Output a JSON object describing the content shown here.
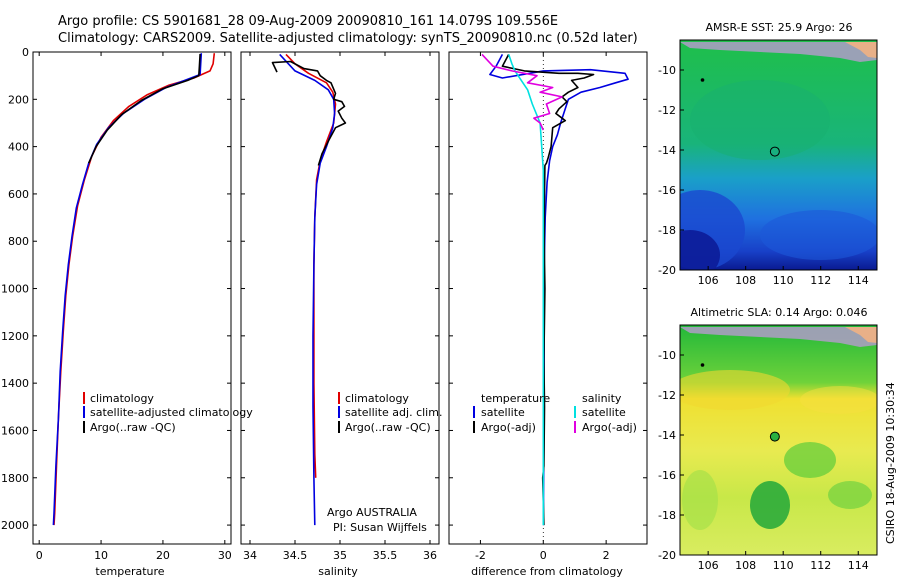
{
  "header": {
    "line1": "Argo profile: CS 5901681_28 09-Aug-2009 20090810_161 14.079S 109.556E",
    "line2": "Climatology: CARS2009. Satellite-adjusted climatology: synTS_20090810.nc (0.52d later)"
  },
  "side_label": "CSIRO 18-Aug-2009 10:30:34",
  "colors": {
    "climatology": "#e00000",
    "satellite": "#0000e0",
    "argo": "#000000",
    "sal_satellite": "#00e0e0",
    "sal_argo": "#e000e0"
  },
  "chart_data": [
    {
      "type": "line",
      "xlabel": "temperature",
      "ylabel": "",
      "xlim": [
        -1,
        31
      ],
      "ylim": [
        2080,
        0
      ],
      "xticks": [
        "0",
        "10",
        "20",
        "30"
      ],
      "yticks": [
        "0",
        "200",
        "400",
        "600",
        "800",
        "1000",
        "1200",
        "1400",
        "1600",
        "1800",
        "2000"
      ],
      "legend": [
        "climatology",
        "satellite-adjusted climatology",
        "Argo(..raw -QC)"
      ],
      "series": [
        {
          "name": "climatology",
          "color": "climatology",
          "points": [
            [
              28.3,
              5
            ],
            [
              28.1,
              50
            ],
            [
              27.6,
              80
            ],
            [
              25,
              110
            ],
            [
              21,
              140
            ],
            [
              17.5,
              180
            ],
            [
              14.5,
              230
            ],
            [
              12,
              290
            ],
            [
              10,
              360
            ],
            [
              8.5,
              440
            ],
            [
              7.3,
              540
            ],
            [
              6.2,
              650
            ],
            [
              5.4,
              780
            ],
            [
              4.8,
              900
            ],
            [
              4.3,
              1030
            ],
            [
              3.9,
              1180
            ],
            [
              3.5,
              1350
            ],
            [
              3.1,
              1550
            ],
            [
              2.8,
              1750
            ],
            [
              2.5,
              1950
            ],
            [
              2.4,
              2000
            ]
          ]
        },
        {
          "name": "satellite-adjusted climatology",
          "color": "satellite",
          "points": [
            [
              26.2,
              5
            ],
            [
              26.1,
              50
            ],
            [
              26.0,
              95
            ],
            [
              24,
              115
            ],
            [
              20.5,
              150
            ],
            [
              17,
              200
            ],
            [
              13.6,
              260
            ],
            [
              11.2,
              320
            ],
            [
              9.3,
              390
            ],
            [
              8,
              470
            ],
            [
              7,
              560
            ],
            [
              6,
              660
            ],
            [
              5.3,
              780
            ],
            [
              4.7,
              900
            ],
            [
              4.2,
              1030
            ],
            [
              3.8,
              1180
            ],
            [
              3.4,
              1350
            ],
            [
              3.1,
              1550
            ],
            [
              2.7,
              1750
            ],
            [
              2.4,
              1950
            ],
            [
              2.3,
              2000
            ]
          ]
        },
        {
          "name": "Argo(..raw -QC)",
          "color": "argo",
          "points": [
            [
              26,
              8
            ],
            [
              25.9,
              60
            ],
            [
              25.8,
              100
            ],
            [
              24,
              120
            ],
            [
              20,
              155
            ],
            [
              16.5,
              205
            ],
            [
              13.3,
              265
            ],
            [
              11,
              330
            ],
            [
              9.2,
              400
            ],
            [
              8,
              470
            ]
          ]
        }
      ]
    },
    {
      "type": "line",
      "xlabel": "salinity",
      "ylabel": "",
      "xlim": [
        33.9,
        36.1
      ],
      "ylim": [
        2080,
        0
      ],
      "xticks": [
        "34",
        "34.5",
        "35",
        "35.5",
        "36"
      ],
      "legend": [
        "climatology",
        "satellite adj. clim.",
        "Argo(..raw -QC)"
      ],
      "annotation": [
        "Argo AUSTRALIA",
        "PI: Susan Wijffels"
      ],
      "series": [
        {
          "name": "climatology",
          "color": "climatology",
          "points": [
            [
              34.4,
              10
            ],
            [
              34.5,
              50
            ],
            [
              34.65,
              90
            ],
            [
              34.85,
              130
            ],
            [
              34.92,
              170
            ],
            [
              34.95,
              220
            ],
            [
              34.93,
              300
            ],
            [
              34.85,
              380
            ],
            [
              34.78,
              460
            ],
            [
              34.74,
              540
            ],
            [
              34.72,
              700
            ],
            [
              34.71,
              900
            ],
            [
              34.71,
              1100
            ],
            [
              34.71,
              1400
            ],
            [
              34.72,
              1700
            ],
            [
              34.73,
              1800
            ]
          ]
        },
        {
          "name": "satellite adj. clim.",
          "color": "satellite",
          "points": [
            [
              34.33,
              10
            ],
            [
              34.5,
              80
            ],
            [
              34.72,
              120
            ],
            [
              34.87,
              160
            ],
            [
              34.93,
              200
            ],
            [
              34.94,
              260
            ],
            [
              34.92,
              320
            ],
            [
              34.85,
              400
            ],
            [
              34.78,
              470
            ],
            [
              34.74,
              560
            ],
            [
              34.72,
              700
            ],
            [
              34.71,
              900
            ],
            [
              34.7,
              1200
            ],
            [
              34.7,
              1500
            ],
            [
              34.71,
              1800
            ],
            [
              34.72,
              2000
            ]
          ]
        },
        {
          "name": "Argo(..raw -QC)",
          "color": "argo",
          "points": [
            [
              34.3,
              85
            ],
            [
              34.25,
              45
            ],
            [
              34.45,
              40
            ],
            [
              34.6,
              70
            ],
            [
              34.75,
              80
            ],
            [
              34.78,
              100
            ],
            [
              34.85,
              120
            ],
            [
              34.9,
              130
            ],
            [
              34.95,
              175
            ],
            [
              34.93,
              200
            ],
            [
              35.02,
              210
            ],
            [
              35.05,
              230
            ],
            [
              34.98,
              250
            ],
            [
              35.02,
              280
            ],
            [
              35.06,
              300
            ],
            [
              34.95,
              320
            ],
            [
              34.88,
              370
            ],
            [
              34.8,
              430
            ],
            [
              34.76,
              480
            ]
          ]
        }
      ]
    },
    {
      "type": "line",
      "xlabel": "difference from climatology",
      "ylabel": "",
      "xlim": [
        -3,
        3.3
      ],
      "ylim": [
        2080,
        0
      ],
      "xticks": [
        "-2",
        "0",
        "2"
      ],
      "legend": [
        "temperature",
        "satellite",
        "Argo(-adj)",
        "salinity",
        "satellite",
        "Argo(-adj)"
      ],
      "series": [
        {
          "name": "temperature satellite",
          "color": "satellite",
          "points": [
            [
              -1.3,
              10
            ],
            [
              -1.5,
              60
            ],
            [
              -1.7,
              95
            ],
            [
              -1.3,
              110
            ],
            [
              0,
              80
            ],
            [
              1.5,
              75
            ],
            [
              2.6,
              90
            ],
            [
              2.7,
              115
            ],
            [
              2.3,
              130
            ],
            [
              1.8,
              150
            ],
            [
              1.2,
              170
            ],
            [
              0.8,
              200
            ],
            [
              0.65,
              260
            ],
            [
              0.55,
              300
            ],
            [
              0.45,
              350
            ],
            [
              0.3,
              400
            ],
            [
              0.2,
              460
            ],
            [
              0.12,
              550
            ],
            [
              0.06,
              700
            ],
            [
              0.03,
              900
            ],
            [
              0.03,
              1200
            ],
            [
              0.02,
              1600
            ],
            [
              0,
              2000
            ]
          ]
        },
        {
          "name": "temperature Argo(-adj)",
          "color": "argo",
          "points": [
            [
              -1.1,
              10
            ],
            [
              -1.3,
              60
            ],
            [
              -0.6,
              80
            ],
            [
              0.5,
              90
            ],
            [
              1.1,
              90
            ],
            [
              1.6,
              95
            ],
            [
              1.3,
              110
            ],
            [
              0.9,
              120
            ],
            [
              1.1,
              150
            ],
            [
              0.8,
              170
            ],
            [
              0.6,
              190
            ],
            [
              0.75,
              210
            ],
            [
              0.5,
              240
            ],
            [
              0.4,
              260
            ],
            [
              0.6,
              280
            ],
            [
              0.7,
              290
            ],
            [
              0.3,
              320
            ],
            [
              0.25,
              400
            ],
            [
              0.15,
              450
            ],
            [
              0.1,
              470
            ],
            [
              0.05,
              480
            ],
            [
              0.04,
              600
            ],
            [
              0.03,
              800
            ],
            [
              0.05,
              1000
            ],
            [
              0.02,
              1300
            ],
            [
              0.04,
              1500
            ],
            [
              0.02,
              1750
            ],
            [
              -0.02,
              1800
            ],
            [
              0.02,
              2000
            ]
          ]
        },
        {
          "name": "salinity satellite",
          "color": "sal_satellite",
          "points": [
            [
              -1.1,
              10
            ],
            [
              -1.0,
              50
            ],
            [
              -0.9,
              80
            ],
            [
              -0.7,
              120
            ],
            [
              -0.5,
              160
            ],
            [
              -0.35,
              220
            ],
            [
              -0.1,
              300
            ],
            [
              -0.05,
              400
            ],
            [
              0,
              500
            ],
            [
              0,
              800
            ],
            [
              0,
              1200
            ],
            [
              0,
              1600
            ],
            [
              0,
              2000
            ]
          ]
        },
        {
          "name": "salinity Argo(-adj)",
          "color": "sal_argo",
          "points": [
            [
              -1.95,
              10
            ],
            [
              -1.6,
              60
            ],
            [
              -1.0,
              80
            ],
            [
              -0.2,
              100
            ],
            [
              -0.5,
              130
            ],
            [
              0.3,
              150
            ],
            [
              -0.1,
              170
            ],
            [
              0.6,
              190
            ],
            [
              0.1,
              220
            ],
            [
              0.2,
              260
            ],
            [
              -0.3,
              280
            ],
            [
              -0.1,
              300
            ],
            [
              0,
              330
            ]
          ]
        }
      ]
    },
    {
      "type": "heatmap",
      "title": "AMSR-E SST: 25.9 Argo: 26",
      "xlim": [
        104.5,
        115
      ],
      "ylim": [
        -20,
        -8.5
      ],
      "xticks": [
        "106",
        "108",
        "110",
        "112",
        "114"
      ],
      "yticks": [
        "-10",
        "-12",
        "-14",
        "-16",
        "-18",
        "-20"
      ],
      "marker": {
        "lon": 109.556,
        "lat": -14.079
      }
    },
    {
      "type": "heatmap",
      "title": "Altimetric SLA: 0.14 Argo: 0.046",
      "xlim": [
        104.5,
        115
      ],
      "ylim": [
        -20,
        -8.5
      ],
      "xticks": [
        "106",
        "108",
        "110",
        "112",
        "114"
      ],
      "yticks": [
        "-10",
        "-12",
        "-14",
        "-16",
        "-18",
        "-20"
      ],
      "marker": {
        "lon": 109.556,
        "lat": -14.079
      }
    }
  ]
}
